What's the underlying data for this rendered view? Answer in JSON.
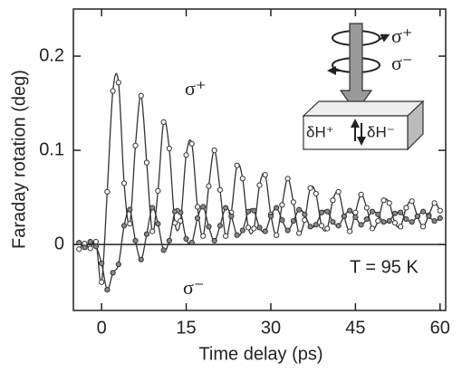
{
  "chart_data": {
    "type": "line",
    "xlabel": "Time delay  (ps)",
    "ylabel": "Faraday rotation (deg)",
    "x": [
      -4,
      -3,
      -2,
      -1,
      0,
      1,
      2,
      3,
      4,
      5,
      6,
      7,
      8,
      9,
      10,
      11,
      12,
      13,
      14,
      15,
      16,
      17,
      18,
      19,
      20,
      21,
      22,
      23,
      24,
      25,
      26,
      27,
      28,
      29,
      30,
      31,
      32,
      33,
      34,
      35,
      36,
      37,
      38,
      39,
      40,
      41,
      42,
      43,
      44,
      45,
      46,
      47,
      48,
      49,
      50,
      51,
      52,
      53,
      54,
      55,
      56,
      57,
      58,
      59,
      60
    ],
    "series": [
      {
        "name": "σ⁺",
        "color": "#333333",
        "marker_fill": "#ffffff",
        "values": [
          -0.005,
          0.001,
          -0.004,
          0.003,
          -0.04,
          0.056,
          0.163,
          0.172,
          0.065,
          0.022,
          0.105,
          0.158,
          0.087,
          0.014,
          0.057,
          0.13,
          0.102,
          0.023,
          0.025,
          0.095,
          0.107,
          0.04,
          0.009,
          0.062,
          0.1,
          0.058,
          0.009,
          0.034,
          0.084,
          0.07,
          0.018,
          0.017,
          0.063,
          0.074,
          0.032,
          0.01,
          0.042,
          0.07,
          0.045,
          0.012,
          0.026,
          0.06,
          0.054,
          0.02,
          0.017,
          0.047,
          0.056,
          0.03,
          0.014,
          0.034,
          0.053,
          0.039,
          0.017,
          0.025,
          0.047,
          0.044,
          0.023,
          0.019,
          0.039,
          0.046,
          0.03,
          0.019,
          0.031,
          0.044,
          0.036
        ]
      },
      {
        "name": "σ⁻",
        "color": "#333333",
        "marker_fill": "#888888",
        "values": [
          0.002,
          -0.003,
          0.003,
          -0.002,
          -0.02,
          -0.048,
          -0.03,
          -0.021,
          0.02,
          0.037,
          0.004,
          -0.016,
          0.011,
          0.039,
          0.022,
          -0.006,
          0.004,
          0.035,
          0.034,
          0.006,
          0.002,
          0.028,
          0.04,
          0.019,
          0.004,
          0.02,
          0.039,
          0.03,
          0.01,
          0.015,
          0.035,
          0.036,
          0.018,
          0.014,
          0.03,
          0.039,
          0.026,
          0.015,
          0.025,
          0.037,
          0.032,
          0.019,
          0.021,
          0.034,
          0.035,
          0.024,
          0.02,
          0.03,
          0.036,
          0.029,
          0.021,
          0.027,
          0.035,
          0.032,
          0.024,
          0.025,
          0.033,
          0.034,
          0.027,
          0.024,
          0.03,
          0.035,
          0.03,
          0.025,
          0.028
        ]
      }
    ],
    "xlim": [
      -5,
      61
    ],
    "ylim": [
      -0.07,
      0.25
    ],
    "xticks": [
      0,
      15,
      30,
      45,
      60
    ],
    "yticks": [
      0.2,
      0.1,
      0
    ],
    "grid": false,
    "zero_line": true,
    "annotations": {
      "temperature": "T = 95 K",
      "inset_circular": [
        "σ⁺",
        "σ⁻"
      ],
      "inset_field": [
        "δH⁺",
        "δH⁻"
      ]
    }
  }
}
